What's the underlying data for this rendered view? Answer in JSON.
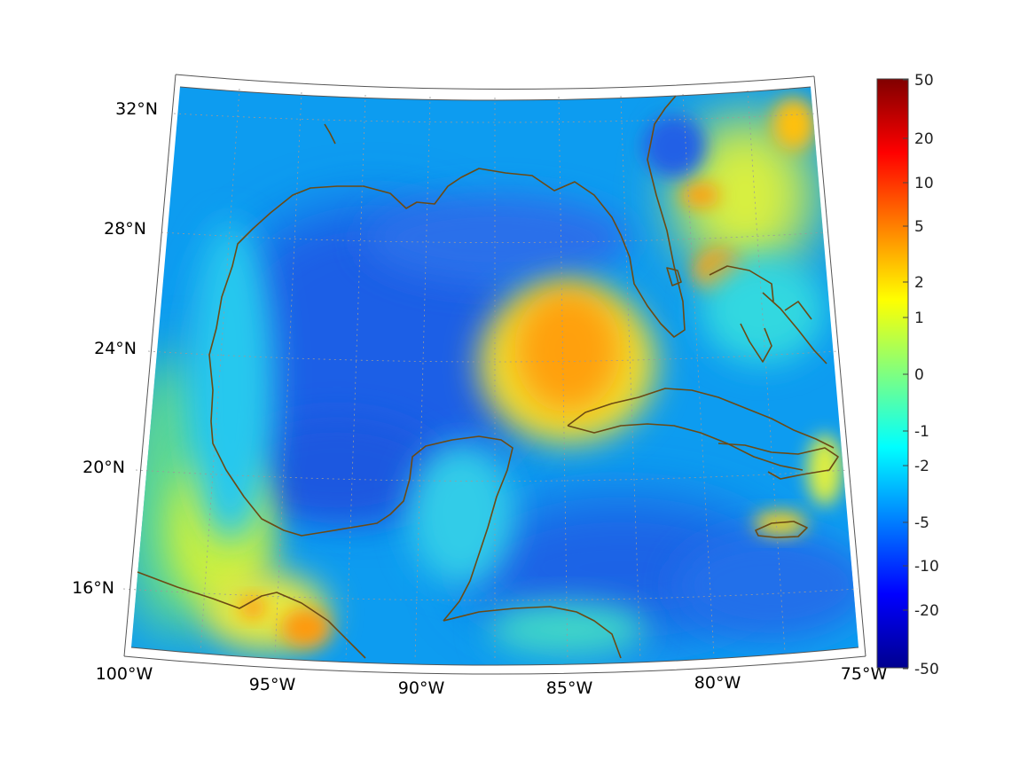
{
  "map": {
    "lon_labels": [
      "100°W",
      "95°W",
      "90°W",
      "85°W",
      "80°W",
      "75°W"
    ],
    "lat_labels": [
      "32°N",
      "28°N",
      "24°N",
      "20°N",
      "16°N"
    ],
    "colors": {
      "coast": "#6b4a14",
      "grid": "#9a9a9a",
      "frame": "#555555"
    }
  },
  "colorbar": {
    "labels": [
      "50",
      "20",
      "10",
      "5",
      "2",
      "1",
      "0",
      "-1",
      "-2",
      "-5",
      "-10",
      "-20",
      "-50"
    ],
    "colormap": "jet"
  }
}
